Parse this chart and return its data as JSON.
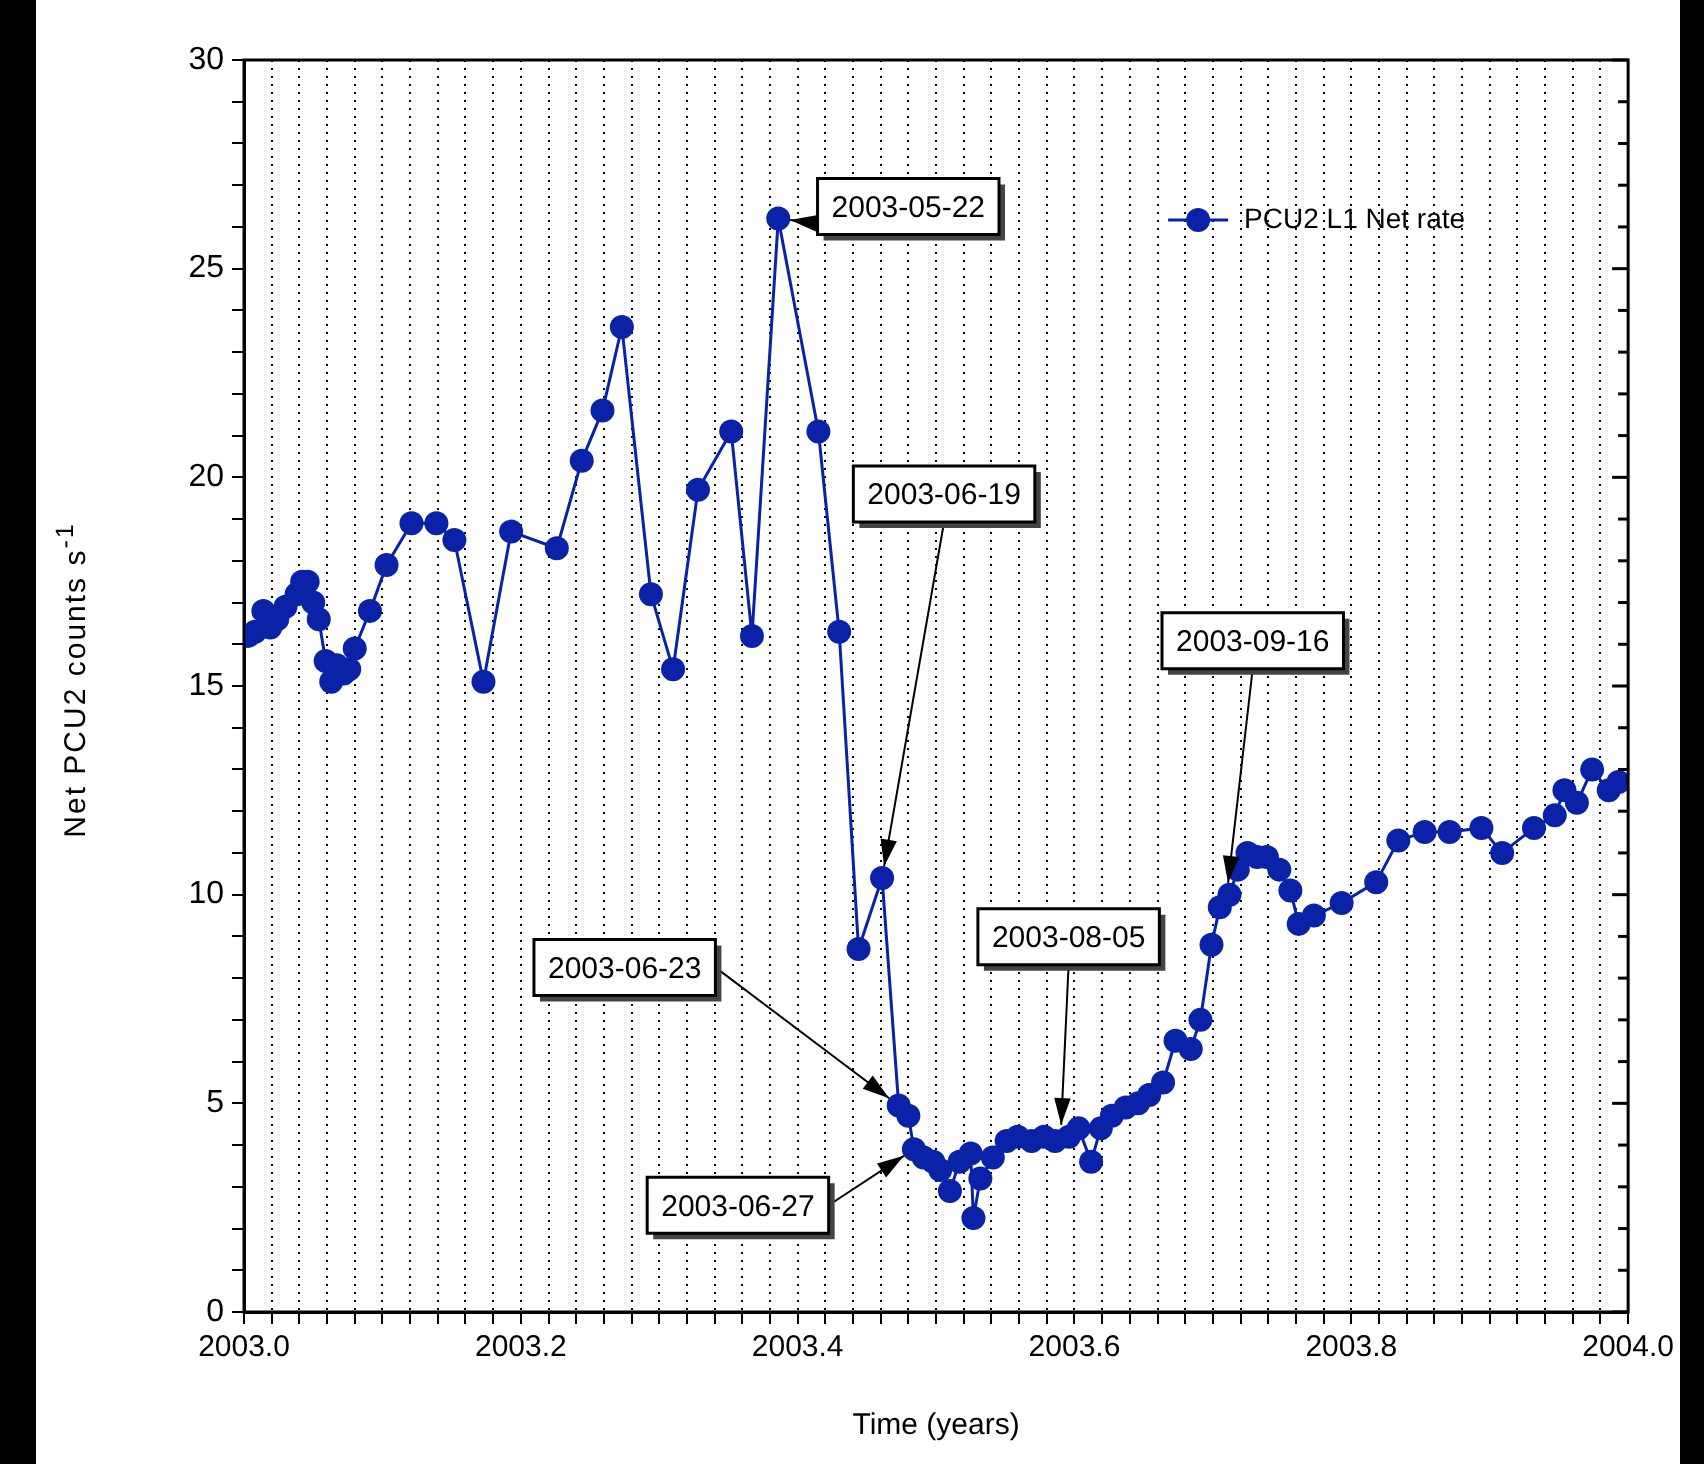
{
  "chart_data": {
    "type": "line",
    "xlabel": "Time (years)",
    "ylabel": "Net PCU2 counts s$^{-1}$",
    "xlim": [
      2003,
      2004
    ],
    "ylim": [
      0,
      30
    ],
    "xticks": [
      {
        "value": 2003,
        "label": "2003.0"
      },
      {
        "value": 2003.02,
        "label": null
      },
      {
        "value": 2003.04,
        "label": null
      },
      {
        "value": 2003.06,
        "label": null
      },
      {
        "value": 2003.08,
        "label": null
      },
      {
        "value": 2003.1,
        "label": null
      },
      {
        "value": 2003.12,
        "label": null
      },
      {
        "value": 2003.14,
        "label": null
      },
      {
        "value": 2003.16,
        "label": null
      },
      {
        "value": 2003.18,
        "label": null
      },
      2003.2,
      {
        "value": 2003.22,
        "label": null
      },
      {
        "value": 2003.24,
        "label": null
      },
      {
        "value": 2003.26,
        "label": null
      },
      {
        "value": 2003.28,
        "label": null
      },
      {
        "value": 2003.3,
        "label": null
      },
      {
        "value": 2003.32,
        "label": null
      },
      {
        "value": 2003.34,
        "label": null
      },
      {
        "value": 2003.36,
        "label": null
      },
      {
        "value": 2003.38,
        "label": null
      },
      2003.4,
      {
        "value": 2003.42,
        "label": null
      },
      {
        "value": 2003.44,
        "label": null
      },
      {
        "value": 2003.46,
        "label": null
      },
      {
        "value": 2003.48,
        "label": null
      },
      {
        "value": 2003.5,
        "label": null
      },
      {
        "value": 2003.52,
        "label": null
      },
      {
        "value": 2003.54,
        "label": null
      },
      {
        "value": 2003.56,
        "label": null
      },
      {
        "value": 2003.58,
        "label": null
      },
      2003.6,
      {
        "value": 2003.62,
        "label": null
      },
      {
        "value": 2003.64,
        "label": null
      },
      {
        "value": 2003.66,
        "label": null
      },
      {
        "value": 2003.68,
        "label": null
      },
      {
        "value": 2003.7,
        "label": null
      },
      {
        "value": 2003.72,
        "label": null
      },
      {
        "value": 2003.74,
        "label": null
      },
      {
        "value": 2003.76,
        "label": null
      },
      {
        "value": 2003.78,
        "label": null
      },
      2003.8,
      {
        "value": 2003.82,
        "label": null
      },
      {
        "value": 2003.84,
        "label": null
      },
      {
        "value": 2003.86,
        "label": null
      },
      {
        "value": 2003.88,
        "label": null
      },
      {
        "value": 2003.9,
        "label": null
      },
      {
        "value": 2003.92,
        "label": null
      },
      {
        "value": 2003.94,
        "label": null
      },
      {
        "value": 2003.96,
        "label": null
      },
      {
        "value": 2003.98,
        "label": null
      },
      {
        "value": 2004,
        "label": "2004.0"
      }
    ],
    "yticks": [
      0,
      {
        "value": 1,
        "label": null
      },
      {
        "value": 2,
        "label": null
      },
      {
        "value": 3,
        "label": null
      },
      {
        "value": 4,
        "label": null
      },
      5,
      {
        "value": 6,
        "label": null
      },
      {
        "value": 7,
        "label": null
      },
      {
        "value": 8,
        "label": null
      },
      {
        "value": 9,
        "label": null
      },
      10,
      {
        "value": 11,
        "label": null
      },
      {
        "value": 12,
        "label": null
      },
      {
        "value": 13,
        "label": null
      },
      {
        "value": 14,
        "label": null
      },
      15,
      {
        "value": 16,
        "label": null
      },
      {
        "value": 17,
        "label": null
      },
      {
        "value": 18,
        "label": null
      },
      {
        "value": 19,
        "label": null
      },
      20,
      {
        "value": 21,
        "label": null
      },
      {
        "value": 22,
        "label": null
      },
      {
        "value": 23,
        "label": null
      },
      {
        "value": 24,
        "label": null
      },
      25,
      {
        "value": 26,
        "label": null
      },
      {
        "value": 27,
        "label": null
      },
      {
        "value": 28,
        "label": null
      },
      {
        "value": 29,
        "label": null
      },
      30
    ],
    "grid": "x",
    "legend": "top right",
    "marker": "circle",
    "line_style": "solid",
    "series": [
      {
        "name": "PCU2 L1 Net rate",
        "color": "#0a22a8",
        "x": [
          2003.003,
          2003.008,
          2003.014,
          2003.019,
          2003.024,
          2003.03,
          2003.038,
          2003.042,
          2003.046,
          2003.05,
          2003.054,
          2003.059,
          2003.063,
          2003.067,
          2003.072,
          2003.076,
          2003.08,
          2003.091,
          2003.103,
          2003.121,
          2003.139,
          2003.152,
          2003.173,
          2003.193,
          2003.226,
          2003.244,
          2003.259,
          2003.273,
          2003.294,
          2003.31,
          2003.328,
          2003.352,
          2003.367,
          2003.386,
          2003.415,
          2003.43,
          2003.444,
          2003.461,
          2003.473,
          2003.48,
          2003.484,
          2003.491,
          2003.498,
          2003.503,
          2003.51,
          2003.517,
          2003.525,
          2003.527,
          2003.532,
          2003.541,
          2003.551,
          2003.559,
          2003.569,
          2003.578,
          2003.586,
          2003.596,
          2003.603,
          2003.612,
          2003.619,
          2003.627,
          2003.637,
          2003.646,
          2003.654,
          2003.664,
          2003.673,
          2003.684,
          2003.691,
          2003.699,
          2003.705,
          2003.712,
          2003.718,
          2003.725,
          2003.732,
          2003.739,
          2003.748,
          2003.756,
          2003.762,
          2003.773,
          2003.793,
          2003.818,
          2003.834,
          2003.853,
          2003.871,
          2003.894,
          2003.909,
          2003.932,
          2003.947,
          2003.954,
          2003.963,
          2003.974,
          2003.986,
          2003.993
        ],
        "values": [
          16.2,
          16.3,
          16.8,
          16.4,
          16.6,
          16.9,
          17.2,
          17.5,
          17.5,
          17.0,
          16.6,
          15.6,
          15.1,
          15.5,
          15.3,
          15.4,
          15.9,
          16.8,
          17.9,
          18.9,
          18.9,
          18.5,
          15.1,
          18.7,
          18.3,
          20.4,
          21.6,
          23.6,
          17.2,
          15.4,
          19.7,
          21.1,
          16.2,
          26.2,
          21.1,
          16.3,
          8.7,
          10.4,
          4.95,
          4.7,
          3.9,
          3.7,
          3.6,
          3.4,
          2.9,
          3.6,
          3.8,
          2.25,
          3.2,
          3.7,
          4.1,
          4.2,
          4.1,
          4.2,
          4.1,
          4.2,
          4.4,
          3.6,
          4.4,
          4.7,
          4.9,
          5.0,
          5.2,
          5.5,
          6.5,
          6.3,
          7.0,
          8.8,
          9.7,
          10.0,
          10.6,
          11.0,
          10.9,
          10.9,
          10.6,
          10.1,
          9.3,
          9.5,
          9.8,
          10.3,
          11.3,
          11.5,
          11.5,
          11.6,
          11.0,
          11.6,
          11.9,
          12.5,
          12.2,
          13.0,
          12.5,
          12.7
        ]
      }
    ],
    "annotations": [
      {
        "text": "2003-05-22",
        "x": 2003.386,
        "y": 26.2
      },
      {
        "text": "2003-06-19",
        "x": 2003.461,
        "y": 10.4
      },
      {
        "text": "2003-06-23",
        "x": 2003.473,
        "y": 4.95
      },
      {
        "text": "2003-06-27",
        "x": 2003.484,
        "y": 3.9
      },
      {
        "text": "2003-08-05",
        "x": 2003.59,
        "y": 4.2
      },
      {
        "text": "2003-09-16",
        "x": 2003.71,
        "y": 10.0
      }
    ]
  }
}
